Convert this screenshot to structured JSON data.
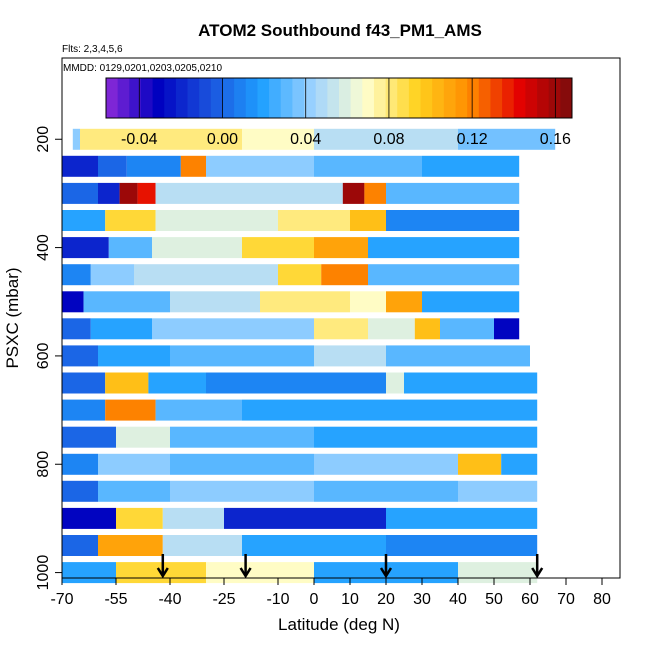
{
  "chart_data": {
    "type": "heatmap",
    "title": "ATOM2 Southbound f43_PM1_AMS",
    "subtitle": "Flts: 2,3,4,5,6",
    "note": "MMDD: 0129,0201,0203,0205,0210",
    "xlabel": "Latitude (deg N)",
    "ylabel": "PSXC (mbar)",
    "xlim": [
      -70,
      85
    ],
    "ylim": [
      1010,
      50
    ],
    "x_ticks": [
      -70,
      -55,
      -40,
      -25,
      -10,
      0,
      10,
      20,
      30,
      40,
      50,
      60,
      70,
      80
    ],
    "x_tick_labels": [
      "-70",
      "-55",
      "-40",
      "-25",
      "-10",
      "0",
      "10",
      "20",
      "30",
      "40",
      "50",
      "60",
      "70",
      "80"
    ],
    "y_ticks": [
      200,
      400,
      600,
      800,
      1000
    ],
    "y_tick_labels": [
      "200",
      "400",
      "600",
      "800",
      "1000"
    ],
    "colorbar": {
      "range": [
        -0.056,
        0.168
      ],
      "ticks": [
        -0.04,
        0.0,
        0.04,
        0.08,
        0.12,
        0.16
      ],
      "tick_labels": [
        "-0.04",
        "0.00",
        "0.04",
        "0.08",
        "0.12",
        "0.16"
      ],
      "colors": [
        "#8e2bd9",
        "#0000c0",
        "#1a52dd",
        "#1fa0ff",
        "#9fd3ff",
        "#ffffd0",
        "#ffd21f",
        "#ff8c00",
        "#e30000",
        "#7a0c0c"
      ]
    },
    "profile_latitudes": [
      -42,
      -19,
      20,
      62
    ],
    "rows": [
      {
        "p": 200,
        "lat_range": [
          -67,
          67
        ],
        "segments": [
          [
            -67,
            -65,
            0.04
          ],
          [
            -65,
            -20,
            0.08
          ],
          [
            -20,
            0,
            0.07
          ],
          [
            0,
            40,
            0.05
          ],
          [
            40,
            67,
            0.035
          ]
        ]
      },
      {
        "p": 250,
        "lat_range": [
          -70,
          57
        ],
        "segments": [
          [
            -70,
            -60,
            -0.02
          ],
          [
            -60,
            -52,
            0.0
          ],
          [
            -52,
            -37,
            0.01
          ],
          [
            -37,
            -30,
            0.12
          ],
          [
            -30,
            0,
            0.04
          ],
          [
            0,
            30,
            0.03
          ],
          [
            30,
            57,
            0.02
          ]
        ]
      },
      {
        "p": 300,
        "lat_range": [
          -70,
          57
        ],
        "segments": [
          [
            -70,
            -60,
            0.0
          ],
          [
            -60,
            -54,
            -0.02
          ],
          [
            -54,
            -49,
            0.16
          ],
          [
            -49,
            -44,
            0.14
          ],
          [
            -44,
            0,
            0.05
          ],
          [
            0,
            8,
            0.05
          ],
          [
            8,
            14,
            0.16
          ],
          [
            14,
            20,
            0.12
          ],
          [
            20,
            57,
            0.03
          ]
        ]
      },
      {
        "p": 350,
        "lat_range": [
          -70,
          57
        ],
        "segments": [
          [
            -70,
            -58,
            0.02
          ],
          [
            -58,
            -44,
            0.09
          ],
          [
            -44,
            -10,
            0.06
          ],
          [
            -10,
            10,
            0.08
          ],
          [
            10,
            20,
            0.1
          ],
          [
            20,
            57,
            0.01
          ]
        ]
      },
      {
        "p": 400,
        "lat_range": [
          -70,
          57
        ],
        "segments": [
          [
            -70,
            -57,
            -0.02
          ],
          [
            -57,
            -45,
            0.03
          ],
          [
            -45,
            -20,
            0.06
          ],
          [
            -20,
            0,
            0.09
          ],
          [
            0,
            15,
            0.11
          ],
          [
            15,
            57,
            0.02
          ]
        ]
      },
      {
        "p": 450,
        "lat_range": [
          -70,
          57
        ],
        "segments": [
          [
            -70,
            -62,
            0.01
          ],
          [
            -62,
            -50,
            0.04
          ],
          [
            -50,
            -10,
            0.05
          ],
          [
            -10,
            2,
            0.09
          ],
          [
            2,
            15,
            0.12
          ],
          [
            15,
            57,
            0.03
          ]
        ]
      },
      {
        "p": 500,
        "lat_range": [
          -70,
          57
        ],
        "segments": [
          [
            -70,
            -64,
            -0.03
          ],
          [
            -64,
            -40,
            0.03
          ],
          [
            -40,
            -15,
            0.05
          ],
          [
            -15,
            10,
            0.08
          ],
          [
            10,
            20,
            0.07
          ],
          [
            20,
            30,
            0.11
          ],
          [
            30,
            57,
            0.02
          ]
        ]
      },
      {
        "p": 550,
        "lat_range": [
          -70,
          57
        ],
        "segments": [
          [
            -70,
            -62,
            0.0
          ],
          [
            -62,
            -45,
            0.02
          ],
          [
            -45,
            0,
            0.04
          ],
          [
            0,
            15,
            0.08
          ],
          [
            15,
            28,
            0.06
          ],
          [
            28,
            35,
            0.1
          ],
          [
            35,
            50,
            0.03
          ],
          [
            50,
            57,
            -0.03
          ]
        ]
      },
      {
        "p": 600,
        "lat_range": [
          -70,
          60
        ],
        "segments": [
          [
            -70,
            -60,
            0.0
          ],
          [
            -60,
            -40,
            0.02
          ],
          [
            -40,
            0,
            0.03
          ],
          [
            0,
            20,
            0.05
          ],
          [
            20,
            60,
            0.03
          ]
        ]
      },
      {
        "p": 650,
        "lat_range": [
          -70,
          62
        ],
        "segments": [
          [
            -70,
            -58,
            0.0
          ],
          [
            -58,
            -46,
            0.1
          ],
          [
            -46,
            -30,
            0.02
          ],
          [
            -30,
            20,
            0.01
          ],
          [
            20,
            25,
            0.06
          ],
          [
            25,
            62,
            0.02
          ]
        ]
      },
      {
        "p": 700,
        "lat_range": [
          -70,
          62
        ],
        "segments": [
          [
            -70,
            -58,
            0.01
          ],
          [
            -58,
            -44,
            0.12
          ],
          [
            -44,
            -20,
            0.03
          ],
          [
            -20,
            20,
            0.02
          ],
          [
            20,
            62,
            0.02
          ]
        ]
      },
      {
        "p": 750,
        "lat_range": [
          -70,
          62
        ],
        "segments": [
          [
            -70,
            -55,
            0.0
          ],
          [
            -55,
            -40,
            0.06
          ],
          [
            -40,
            0,
            0.03
          ],
          [
            0,
            40,
            0.02
          ],
          [
            40,
            62,
            0.02
          ]
        ]
      },
      {
        "p": 800,
        "lat_range": [
          -70,
          62
        ],
        "segments": [
          [
            -70,
            -60,
            0.01
          ],
          [
            -60,
            -40,
            0.04
          ],
          [
            -40,
            0,
            0.03
          ],
          [
            0,
            40,
            0.04
          ],
          [
            40,
            52,
            0.1
          ],
          [
            52,
            62,
            0.02
          ]
        ]
      },
      {
        "p": 850,
        "lat_range": [
          -70,
          62
        ],
        "segments": [
          [
            -70,
            -60,
            0.0
          ],
          [
            -60,
            -40,
            0.03
          ],
          [
            -40,
            0,
            0.04
          ],
          [
            0,
            40,
            0.03
          ],
          [
            40,
            62,
            0.04
          ]
        ]
      },
      {
        "p": 900,
        "lat_range": [
          -70,
          62
        ],
        "segments": [
          [
            -70,
            -55,
            -0.03
          ],
          [
            -55,
            -42,
            0.09
          ],
          [
            -42,
            -25,
            0.05
          ],
          [
            -25,
            20,
            -0.02
          ],
          [
            20,
            62,
            0.02
          ]
        ]
      },
      {
        "p": 950,
        "lat_range": [
          -70,
          62
        ],
        "segments": [
          [
            -70,
            -60,
            0.0
          ],
          [
            -60,
            -42,
            0.11
          ],
          [
            -42,
            -20,
            0.05
          ],
          [
            -20,
            20,
            0.02
          ],
          [
            20,
            62,
            0.01
          ]
        ]
      },
      {
        "p": 1000,
        "lat_range": [
          -70,
          62
        ],
        "segments": [
          [
            -70,
            -55,
            0.02
          ],
          [
            -55,
            -30,
            0.09
          ],
          [
            -30,
            0,
            0.07
          ],
          [
            0,
            40,
            0.02
          ],
          [
            40,
            62,
            0.06
          ]
        ]
      }
    ]
  }
}
